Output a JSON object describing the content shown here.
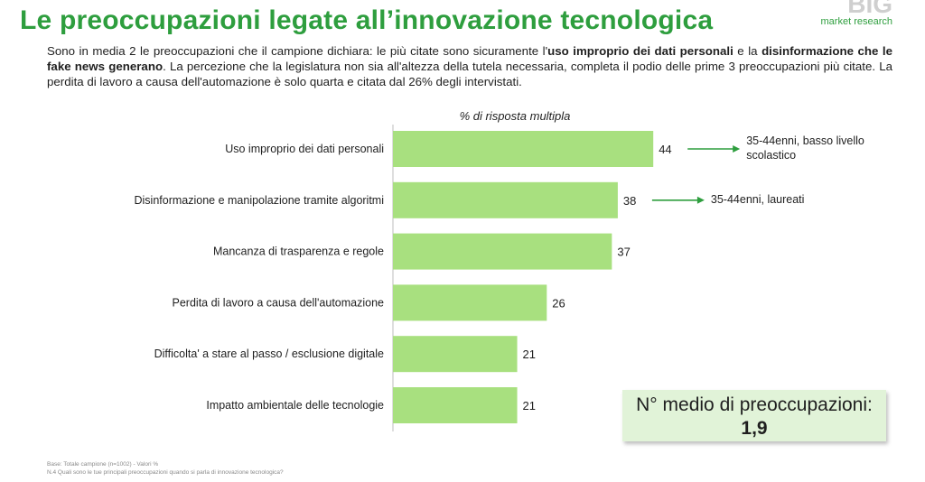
{
  "title": "Le preoccupazioni legate all’innovazione tecnologica",
  "logo": {
    "big": "BIG",
    "sub": "market research"
  },
  "intro": {
    "p1": "Sono in media 2 le preoccupazioni che il campione dichiara: le più citate sono sicuramente l'",
    "b1": "uso improprio dei dati personali",
    "p2": " e la ",
    "b2": "disinformazione che le fake news generano",
    "p3": ". La percezione che la legislatura non sia all'altezza della tutela necessaria, completa il podio delle prime 3 preoccupazioni più citate. La perdita di lavoro a causa dell'automazione è solo quarta e citata dal 26% degli intervistati."
  },
  "chart_data": {
    "type": "bar",
    "orientation": "horizontal",
    "xlabel": "% di risposta multipla",
    "categories": [
      "Uso improprio dei dati personali",
      "Disinformazione e manipolazione tramite algoritmi",
      "Mancanza di trasparenza e regole",
      "Perdita di lavoro a causa dell'automazione",
      "Difficolta' a stare al passo / esclusione digitale",
      "Impatto ambientale delle tecnologie"
    ],
    "values": [
      44,
      38,
      37,
      26,
      21,
      21
    ],
    "value_labels": [
      "44",
      "38",
      "37",
      "26",
      "21",
      "21"
    ],
    "bar_color": "#a8e07f",
    "arrow_color": "#2e9e3e",
    "annotations": [
      {
        "category_index": 0,
        "text": [
          "35-44enni, basso livello",
          "scolastico"
        ]
      },
      {
        "category_index": 1,
        "text": [
          "35-44enni, laureati"
        ]
      }
    ]
  },
  "kpi": {
    "label": "N° medio di preoccupazioni:",
    "value": "1,9"
  },
  "footer": {
    "base": "Base: Totale campione (n=1002) - Valori %",
    "question": "N.4 Quali sono le tue principali preoccupazioni quando si parla di innovazione tecnologica?"
  }
}
